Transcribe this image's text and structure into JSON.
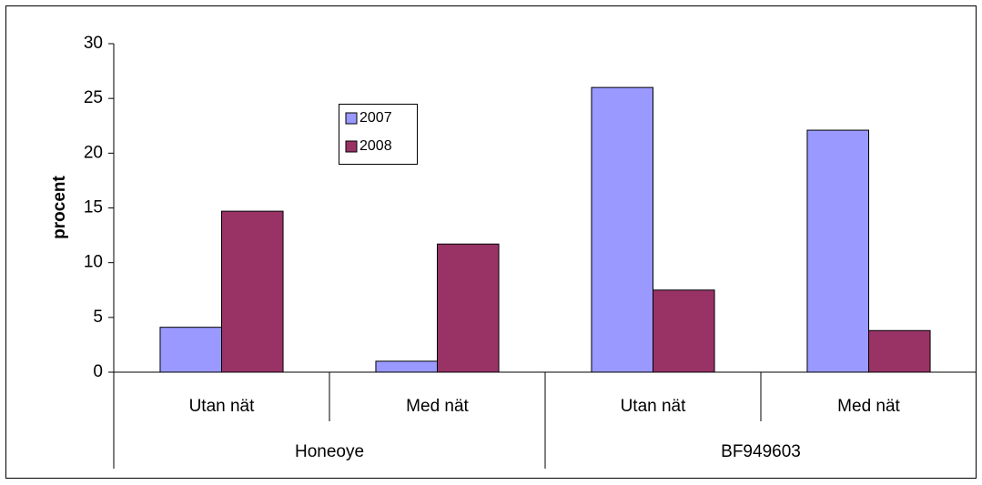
{
  "chart_data": {
    "type": "bar",
    "y_label": "procent",
    "categories": [
      "Utan nät",
      "Med nät",
      "Utan nät",
      "Med nät"
    ],
    "groups": [
      "Honeoye",
      "BF949603"
    ],
    "series": [
      {
        "name": "2007",
        "color": "#9999ff",
        "values": [
          4.1,
          1.0,
          26.0,
          22.1
        ]
      },
      {
        "name": "2008",
        "color": "#993366",
        "values": [
          14.7,
          11.7,
          7.5,
          3.8
        ]
      }
    ],
    "ylim": [
      0,
      30
    ],
    "yticks": [
      0,
      5,
      10,
      15,
      20,
      25,
      30
    ],
    "grid": false
  }
}
